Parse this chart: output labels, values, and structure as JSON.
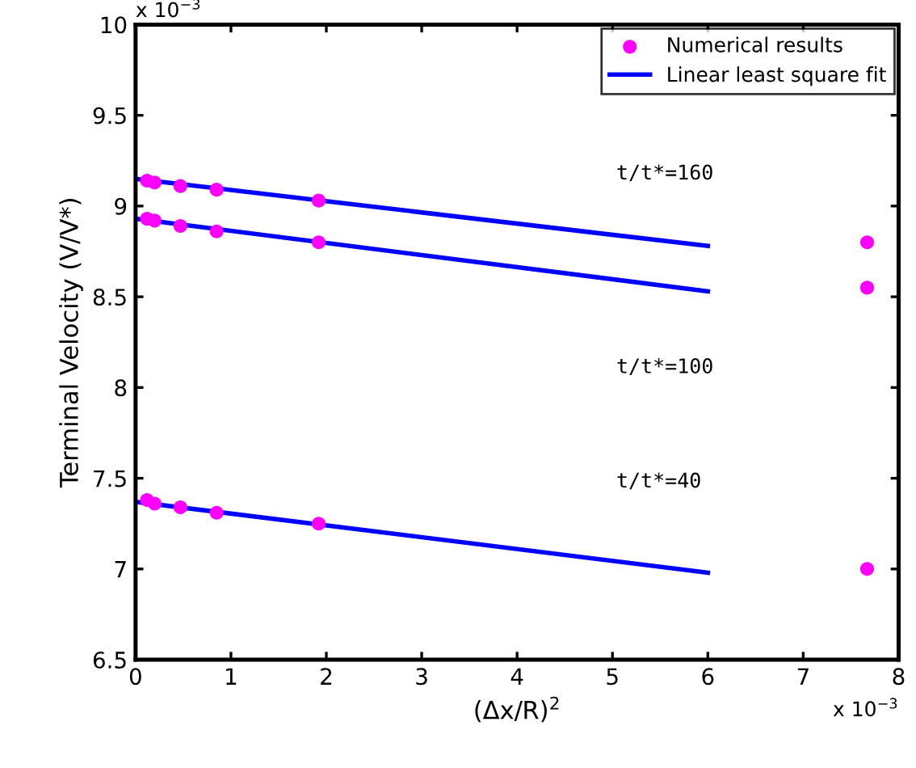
{
  "chart_data": {
    "type": "scatter",
    "xlabel": "(Δx/R)$^{2}$",
    "ylabel": "Terminal Velocity (V/V*)",
    "xlim": [
      0,
      8
    ],
    "xticks": [
      0,
      1,
      2,
      3,
      4,
      5,
      6,
      7,
      8
    ],
    "ylim": [
      6.5,
      10
    ],
    "yticks": [
      6.5,
      7,
      7.5,
      8,
      8.5,
      9,
      9.5,
      10
    ],
    "grid": false,
    "legend": "top right",
    "series": [
      {
        "name": "Numerical results",
        "marker": "circle",
        "color": "#ff00ff",
        "x": [
          0.12,
          0.2,
          0.47,
          0.85,
          1.92,
          7.67,
          0.12,
          0.2,
          0.47,
          0.85,
          1.92,
          7.67,
          0.12,
          0.2,
          0.47,
          0.85,
          1.92,
          7.67
        ],
        "values": [
          9.14,
          9.13,
          9.11,
          9.09,
          9.03,
          8.8,
          8.93,
          8.92,
          8.89,
          8.86,
          8.8,
          8.55,
          7.38,
          7.36,
          7.34,
          7.31,
          7.25,
          7.0
        ]
      },
      {
        "name": "Linear least square fit",
        "type": "line",
        "color": "#0000ff",
        "x": [
          0,
          6
        ],
        "values": [
          9.15,
          8.78
        ]
      },
      {
        "type": "line",
        "color": "#0000ff",
        "x": [
          0,
          6
        ],
        "values": [
          8.93,
          8.53
        ]
      },
      {
        "type": "line",
        "color": "#0000ff",
        "x": [
          0,
          6
        ],
        "values": [
          7.37,
          6.98
        ]
      }
    ],
    "annotations": [
      "t/t*=160",
      "t/t*=100",
      "t/t*=40",
      "x 10$^{−3}$",
      "x 10$^{−3}$"
    ]
  }
}
